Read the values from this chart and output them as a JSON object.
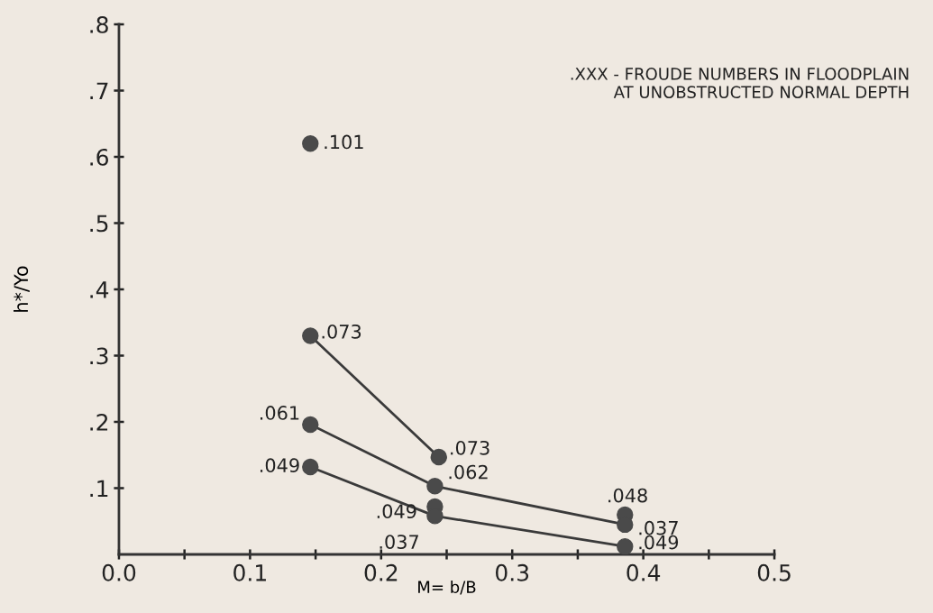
{
  "chart_data": {
    "type": "scatter",
    "xlabel": "M= b/B",
    "ylabel": "h*/Yo",
    "annotations": [
      ".XXX - FROUDE NUMBERS IN FLOODPLAIN\nAT UNOBSTRUCTED NORMAL DEPTH",
      {
        "text": ".101",
        "x": 0.146,
        "y": 0.62
      },
      {
        "text": ".073",
        "x": 0.146,
        "y": 0.33
      },
      {
        "text": ".061",
        "x": 0.146,
        "y": 0.196
      },
      {
        "text": ".049",
        "x": 0.146,
        "y": 0.132
      },
      {
        "text": ".073",
        "x": 0.244,
        "y": 0.147
      },
      {
        "text": ".062",
        "x": 0.241,
        "y": 0.103
      },
      {
        "text": ".049",
        "x": 0.241,
        "y": 0.072
      },
      {
        "text": ".037",
        "x": 0.241,
        "y": 0.058
      },
      {
        "text": ".048",
        "x": 0.386,
        "y": 0.06
      },
      {
        "text": ".037",
        "x": 0.386,
        "y": 0.045
      },
      {
        "text": ".049",
        "x": 0.386,
        "y": 0.012
      }
    ],
    "xlim": [
      0,
      0.5
    ],
    "ylim": [
      0,
      0.8
    ],
    "xticks": [
      {
        "value": 0,
        "label": "0.0"
      },
      {
        "value": 0.05,
        "label": null
      },
      {
        "value": 0.1,
        "label": "0.1"
      },
      {
        "value": 0.15,
        "label": null
      },
      {
        "value": 0.2,
        "label": "0.2"
      },
      {
        "value": 0.25,
        "label": null
      },
      {
        "value": 0.3,
        "label": "0.3"
      },
      {
        "value": 0.35,
        "label": null
      },
      {
        "value": 0.4,
        "label": "0.4"
      },
      {
        "value": 0.45,
        "label": null
      },
      {
        "value": 0.5,
        "label": "0.5"
      }
    ],
    "yticks": [
      {
        "value": 0.1,
        "label": ".1"
      },
      {
        "value": 0.2,
        "label": ".2"
      },
      {
        "value": 0.3,
        "label": ".3"
      },
      {
        "value": 0.4,
        "label": ".4"
      },
      {
        "value": 0.5,
        "label": ".5"
      },
      {
        "value": 0.6,
        "label": ".6"
      },
      {
        "value": 0.7,
        "label": ".7"
      },
      {
        "value": 0.8,
        "label": ".8"
      }
    ],
    "series": [
      {
        "color": "#4a4a4a",
        "marker": "circle",
        "x": [
          0.146,
          0.146,
          0.146,
          0.146,
          0.244,
          0.241,
          0.241,
          0.241,
          0.386,
          0.386,
          0.386
        ],
        "values": [
          0.62,
          0.33,
          0.196,
          0.132,
          0.147,
          0.103,
          0.072,
          0.058,
          0.06,
          0.045,
          0.012
        ]
      },
      {
        "type": "line",
        "color": "#3a3a3a",
        "line_style": "solid",
        "x": [
          0.146,
          0.244
        ],
        "values": [
          0.33,
          0.147
        ]
      },
      {
        "type": "line",
        "color": "#3a3a3a",
        "line_style": "solid",
        "x": [
          0.146,
          0.241,
          0.386
        ],
        "values": [
          0.196,
          0.103,
          0.045
        ]
      },
      {
        "type": "line",
        "color": "#3a3a3a",
        "line_style": "solid",
        "x": [
          0.146,
          0.241,
          0.386
        ],
        "values": [
          0.132,
          0.058,
          0.012
        ]
      }
    ]
  }
}
